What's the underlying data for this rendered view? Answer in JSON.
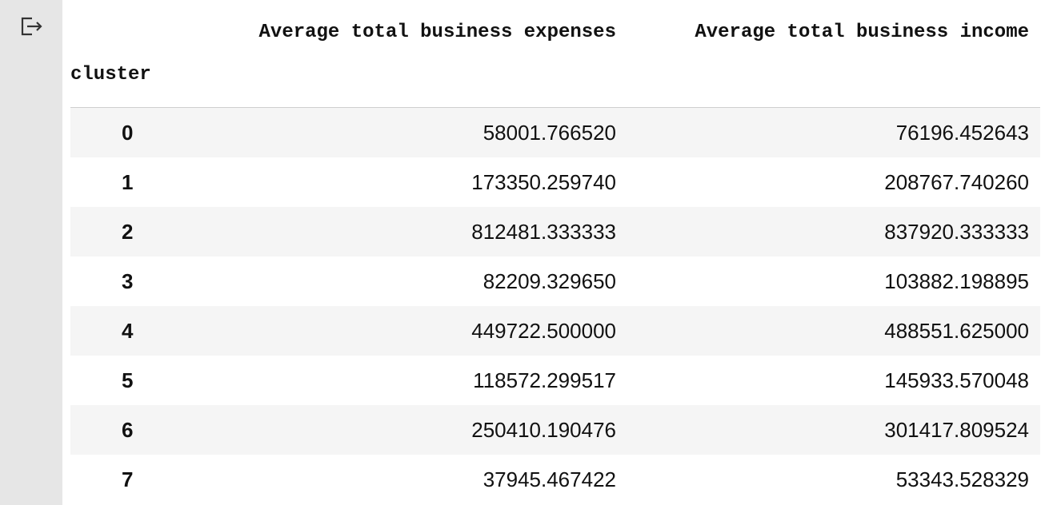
{
  "table": {
    "index_name": "cluster",
    "columns": [
      "Average total business expenses",
      "Average total business income"
    ],
    "rows": [
      {
        "index": "0",
        "expenses": "58001.766520",
        "income": "76196.452643"
      },
      {
        "index": "1",
        "expenses": "173350.259740",
        "income": "208767.740260"
      },
      {
        "index": "2",
        "expenses": "812481.333333",
        "income": "837920.333333"
      },
      {
        "index": "3",
        "expenses": "82209.329650",
        "income": "103882.198895"
      },
      {
        "index": "4",
        "expenses": "449722.500000",
        "income": "488551.625000"
      },
      {
        "index": "5",
        "expenses": "118572.299517",
        "income": "145933.570048"
      },
      {
        "index": "6",
        "expenses": "250410.190476",
        "income": "301417.809524"
      },
      {
        "index": "7",
        "expenses": "37945.467422",
        "income": "53343.528329"
      }
    ]
  },
  "icons": {
    "output_icon": "output-redirect-icon"
  }
}
